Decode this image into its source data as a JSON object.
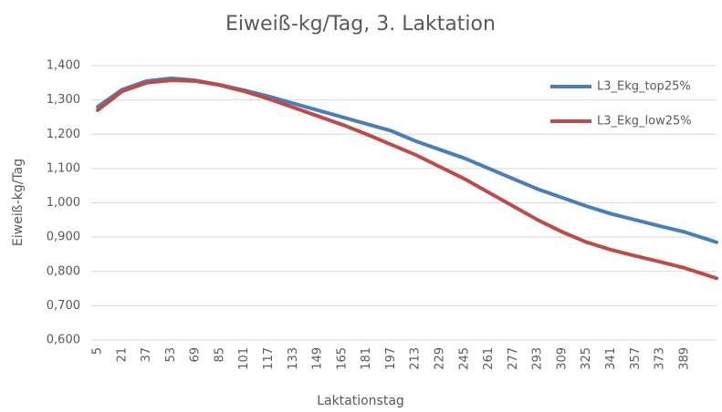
{
  "chart_data": {
    "type": "line",
    "title": "Eiweiß-kg/Tag, 3. Laktation",
    "x_label": "Laktationstag",
    "y_label": "Eiweiß-kg/Tag",
    "x": [
      5,
      21,
      37,
      53,
      69,
      85,
      101,
      117,
      133,
      149,
      165,
      181,
      197,
      213,
      229,
      245,
      261,
      277,
      293,
      309,
      325,
      341,
      357,
      373,
      389,
      410
    ],
    "series": [
      {
        "name": "L3_Ekg_top25%",
        "color": "#4a7ebb",
        "values": [
          1.28,
          1.33,
          1.355,
          1.363,
          1.357,
          1.344,
          1.328,
          1.31,
          1.29,
          1.27,
          1.25,
          1.23,
          1.21,
          1.18,
          1.155,
          1.13,
          1.1,
          1.07,
          1.04,
          1.015,
          0.99,
          0.968,
          0.95,
          0.932,
          0.915,
          0.885
        ]
      },
      {
        "name": "L3_Ekg_low25%",
        "color": "#be4b48",
        "values": [
          1.27,
          1.325,
          1.35,
          1.357,
          1.355,
          1.343,
          1.325,
          1.303,
          1.278,
          1.253,
          1.228,
          1.2,
          1.17,
          1.14,
          1.105,
          1.07,
          1.03,
          0.99,
          0.95,
          0.915,
          0.885,
          0.863,
          0.845,
          0.828,
          0.81,
          0.78
        ]
      }
    ],
    "xlim": [
      5,
      410
    ],
    "xticks": [
      5,
      21,
      37,
      53,
      69,
      85,
      101,
      117,
      133,
      149,
      165,
      181,
      197,
      213,
      229,
      245,
      261,
      277,
      293,
      309,
      325,
      341,
      357,
      373,
      389
    ],
    "ylim": [
      0.6,
      1.4
    ],
    "yticks": [
      {
        "value": 0.6,
        "label": "0,600"
      },
      {
        "value": 0.7,
        "label": "0,700"
      },
      {
        "value": 0.8,
        "label": "0,800"
      },
      {
        "value": 0.9,
        "label": "0,900"
      },
      {
        "value": 1.0,
        "label": "1,000"
      },
      {
        "value": 1.1,
        "label": "1,100"
      },
      {
        "value": 1.2,
        "label": "1,200"
      },
      {
        "value": 1.3,
        "label": "1,300"
      },
      {
        "value": 1.4,
        "label": "1,400"
      }
    ],
    "grid": true,
    "legend": "upper right"
  }
}
